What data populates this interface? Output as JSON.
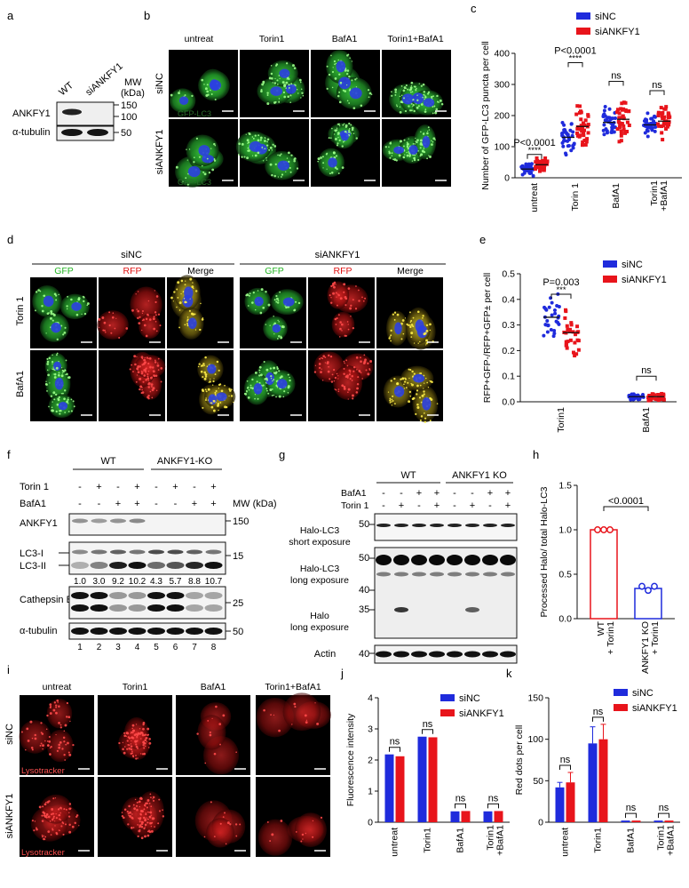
{
  "panels": {
    "a": "a",
    "b": "b",
    "c": "c",
    "d": "d",
    "e": "e",
    "f": "f",
    "g": "g",
    "h": "h",
    "i": "i",
    "j": "j",
    "k": "k"
  },
  "a": {
    "lanes": [
      "WT",
      "siANKFY1"
    ],
    "mw_label": "MW",
    "mw_unit": "(kDa)",
    "rows": [
      {
        "label": "ANKFY1",
        "markers": [
          "150",
          "100"
        ]
      },
      {
        "label": "α-tubulin",
        "markers": [
          "50"
        ]
      }
    ]
  },
  "b": {
    "columns": [
      "untreat",
      "Torin1",
      "BafA1",
      "Torin1+BafA1"
    ],
    "rows": [
      "siNC",
      "siANKFY1"
    ],
    "stain": "GFP-LC3"
  },
  "d": {
    "groups": [
      "siNC",
      "siANKFY1"
    ],
    "channels": [
      "GFP",
      "RFP",
      "Merge",
      "GFP",
      "RFP",
      "Merge"
    ],
    "rows": [
      "Torin 1",
      "BafA1"
    ]
  },
  "f": {
    "groups": [
      "WT",
      "ANKFY1-KO"
    ],
    "treat_labels": [
      "Torin 1",
      "BafA1"
    ],
    "torin": [
      "-",
      "+",
      "-",
      "+",
      "-",
      "+",
      "-",
      "+"
    ],
    "bafa": [
      "-",
      "-",
      "+",
      "+",
      "-",
      "-",
      "+",
      "+"
    ],
    "mw_label": "MW (kDa)",
    "rows": [
      "ANKFY1",
      "LC3-I",
      "LC3-II",
      "Cathepsin B",
      "α-tubulin"
    ],
    "markers": [
      "150",
      "15",
      "25",
      "50"
    ],
    "ratios": [
      "1.0",
      "3.0",
      "9.2",
      "10.2",
      "4.3",
      "5.7",
      "8.8",
      "10.7"
    ],
    "lanes": [
      "1",
      "2",
      "3",
      "4",
      "5",
      "6",
      "7",
      "8"
    ]
  },
  "g": {
    "groups": [
      "WT",
      "ANKFY1 KO"
    ],
    "treat_labels": [
      "BafA1",
      "Torin 1"
    ],
    "bafa": [
      "-",
      "-",
      "+",
      "+",
      "-",
      "-",
      "+",
      "+"
    ],
    "torin": [
      "-",
      "+",
      "-",
      "+",
      "-",
      "+",
      "-",
      "+"
    ],
    "rows": [
      "Halo-LC3",
      "short exposure",
      "Halo-LC3",
      "long exposure",
      "Halo",
      "long exposure",
      "Actin"
    ],
    "markers": [
      "50",
      "50",
      "40",
      "35",
      "40"
    ]
  },
  "i": {
    "columns": [
      "untreat",
      "Torin1",
      "BafA1",
      "Torin1+BafA1"
    ],
    "rows": [
      "siNC",
      "siANKFY1"
    ],
    "stain": "Lysotracker"
  },
  "chart_data": [
    {
      "id": "c",
      "type": "scatter",
      "ylabel": "Number of GFP-LC3 puncta per cell",
      "ylim": [
        0,
        400
      ],
      "yticks": [
        "0",
        "100",
        "200",
        "300",
        "400"
      ],
      "categories": [
        "untreat",
        "Torin 1",
        "BafA1",
        "Torin1 +BafA1"
      ],
      "legend": [
        "siNC",
        "siANKFY1"
      ],
      "colors": {
        "siNC": "#1f2bdc",
        "siANKFY1": "#e8141b"
      },
      "series": [
        {
          "name": "siNC",
          "means": [
            28,
            130,
            178,
            170
          ],
          "spread": [
            18,
            40,
            38,
            32
          ]
        },
        {
          "name": "siANKFY1",
          "means": [
            42,
            165,
            188,
            182
          ],
          "spread": [
            20,
            60,
            55,
            45
          ]
        }
      ],
      "annotations": [
        {
          "group": 0,
          "text": "P<0.0001",
          "stars": "****"
        },
        {
          "group": 1,
          "text": "P<0.0001",
          "stars": "****"
        },
        {
          "group": 2,
          "text": "ns",
          "stars": ""
        },
        {
          "group": 3,
          "text": "ns",
          "stars": ""
        }
      ]
    },
    {
      "id": "e",
      "type": "scatter",
      "ylabel": "RFP+GFP-/RFP+GFP± per cell",
      "ylim": [
        0,
        0.5
      ],
      "yticks": [
        "0.0",
        "0.1",
        "0.2",
        "0.3",
        "0.4",
        "0.5"
      ],
      "categories": [
        "Torin1",
        "BafA1"
      ],
      "legend": [
        "siNC",
        "siANKFY1"
      ],
      "series": [
        {
          "name": "siNC",
          "means": [
            0.33,
            0.02
          ],
          "spread": [
            0.07,
            0.01
          ]
        },
        {
          "name": "siANKFY1",
          "means": [
            0.27,
            0.02
          ],
          "spread": [
            0.08,
            0.015
          ]
        }
      ],
      "annotations": [
        {
          "group": 0,
          "text": "P=0.003",
          "stars": "***"
        },
        {
          "group": 1,
          "text": "ns",
          "stars": ""
        }
      ]
    },
    {
      "id": "h",
      "type": "bar",
      "ylabel": "Processed Halo/ total Halo-LC3",
      "ylim": [
        0,
        1.5
      ],
      "yticks": [
        "0.0",
        "0.5",
        "1.0",
        "1.5"
      ],
      "categories": [
        "WT + Torin1",
        "ANKFY1 KO + Torin1"
      ],
      "values": [
        1.0,
        0.34
      ],
      "colors": [
        "#e8141b",
        "#1f2bdc"
      ],
      "annotation": "<0.0001"
    },
    {
      "id": "j",
      "type": "bar",
      "ylabel": "Fluorescence intensity",
      "ylim": [
        0,
        4
      ],
      "yticks": [
        "0",
        "1",
        "2",
        "3",
        "4"
      ],
      "categories": [
        "untreat",
        "Torin1",
        "BafA1",
        "Torin1 +BafA1"
      ],
      "legend": [
        "siNC",
        "siANKFY1"
      ],
      "series": [
        {
          "name": "siNC",
          "values": [
            2.18,
            2.75,
            0.35,
            0.35
          ]
        },
        {
          "name": "siANKFY1",
          "values": [
            2.12,
            2.73,
            0.36,
            0.36
          ]
        }
      ],
      "annotations": [
        "ns",
        "ns",
        "ns",
        "ns"
      ]
    },
    {
      "id": "k",
      "type": "bar",
      "ylabel": "Red dots per cell",
      "ylim": [
        0,
        150
      ],
      "yticks": [
        "0",
        "50",
        "100",
        "150"
      ],
      "categories": [
        "untreat",
        "Torin1",
        "BafA1",
        "Torin1 +BafA1"
      ],
      "legend": [
        "siNC",
        "siANKFY1"
      ],
      "series": [
        {
          "name": "siNC",
          "values": [
            42,
            95,
            2,
            2
          ],
          "errors": [
            6,
            20,
            0,
            0
          ]
        },
        {
          "name": "siANKFY1",
          "values": [
            48,
            100,
            2,
            2
          ],
          "errors": [
            12,
            18,
            0,
            0
          ]
        }
      ],
      "annotations": [
        "ns",
        "ns",
        "ns",
        "ns"
      ]
    }
  ]
}
